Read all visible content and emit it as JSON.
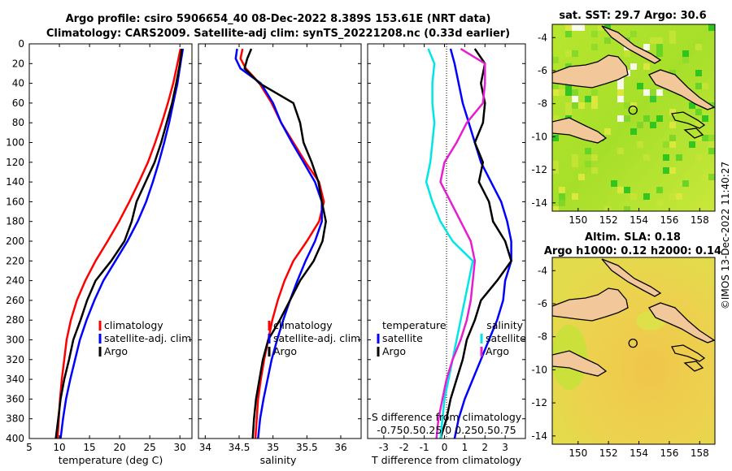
{
  "titles": {
    "line1": "Argo profile: csiro 5906654_40 08-Dec-2022 8.389S 153.61E (NRT data)",
    "line2": "Climatology: CARS2009. Satellite-adj clim: synTS_20221208.nc (0.33d earlier)",
    "map1": "sat. SST: 29.7 Argo: 30.6",
    "map2a": "Altim. SLA: 0.18",
    "map2b": "Argo h1000: 0.12 h2000: 0.14",
    "side": "©IMOS 13-Dec-2022 11:40:27"
  },
  "colors": {
    "climatology": "#ff0000",
    "satellite": "#0000ff",
    "argo": "#000000",
    "sat_salinity": "#00e6e6",
    "argo_salinity": "#e61ed2"
  },
  "chart_data": [
    {
      "type": "line",
      "name": "temperature",
      "xlabel": "temperature (deg C)",
      "ylabel": "",
      "xlim": [
        5,
        32
      ],
      "ylim": [
        400,
        0
      ],
      "xticks": [
        5,
        10,
        15,
        20,
        25,
        30
      ],
      "yticks": [
        0,
        20,
        40,
        60,
        80,
        100,
        120,
        140,
        160,
        180,
        200,
        220,
        240,
        260,
        280,
        300,
        320,
        340,
        360,
        380,
        400
      ],
      "legend": [
        "climatology",
        "satellite-adj. clim",
        "Argo"
      ],
      "series": [
        {
          "name": "climatology",
          "depth": [
            5,
            20,
            40,
            60,
            80,
            100,
            120,
            140,
            160,
            180,
            200,
            220,
            240,
            260,
            280,
            300,
            320,
            340,
            360,
            380,
            400
          ],
          "values": [
            30.1,
            29.6,
            28.9,
            28.0,
            27.0,
            25.9,
            24.7,
            23.2,
            21.6,
            19.9,
            18.0,
            16.0,
            14.3,
            12.9,
            11.9,
            11.2,
            10.8,
            10.4,
            10.1,
            9.9,
            9.7
          ]
        },
        {
          "name": "satellite-adj. clim",
          "depth": [
            5,
            20,
            40,
            60,
            80,
            100,
            120,
            140,
            160,
            180,
            200,
            220,
            240,
            260,
            280,
            300,
            320,
            340,
            360,
            380,
            400
          ],
          "values": [
            30.5,
            30.1,
            29.6,
            28.9,
            28.2,
            27.4,
            26.5,
            25.5,
            24.4,
            23.0,
            21.3,
            19.3,
            17.3,
            15.8,
            14.5,
            13.4,
            12.6,
            11.8,
            11.1,
            10.6,
            10.2
          ]
        },
        {
          "name": "Argo",
          "depth": [
            5,
            20,
            40,
            60,
            80,
            100,
            120,
            140,
            160,
            180,
            200,
            220,
            240,
            260,
            280,
            300,
            320,
            340,
            360,
            380,
            400
          ],
          "values": [
            30.3,
            30.0,
            29.4,
            28.7,
            27.8,
            26.9,
            25.8,
            24.3,
            22.8,
            22.0,
            20.8,
            18.6,
            16.0,
            14.6,
            13.5,
            12.3,
            11.6,
            10.8,
            10.2,
            9.8,
            9.4
          ]
        }
      ]
    },
    {
      "type": "line",
      "name": "salinity",
      "xlabel": "salinity",
      "ylabel": "",
      "xlim": [
        33.9,
        36.3
      ],
      "ylim": [
        400,
        0
      ],
      "xticks": [
        34,
        34.5,
        35,
        35.5,
        36
      ],
      "legend": [
        "climatology",
        "satellite-adj. clim",
        "Argo"
      ],
      "series": [
        {
          "name": "climatology",
          "depth": [
            5,
            15,
            25,
            40,
            60,
            80,
            100,
            120,
            140,
            160,
            180,
            200,
            220,
            240,
            260,
            280,
            300,
            320,
            340,
            360,
            380,
            400
          ],
          "values": [
            34.55,
            34.52,
            34.6,
            34.8,
            34.98,
            35.12,
            35.3,
            35.48,
            35.68,
            35.75,
            35.68,
            35.5,
            35.3,
            35.17,
            35.07,
            34.99,
            34.93,
            34.87,
            34.82,
            34.78,
            34.76,
            34.74
          ]
        },
        {
          "name": "satellite-adj. clim",
          "depth": [
            5,
            15,
            25,
            40,
            60,
            80,
            100,
            120,
            140,
            160,
            180,
            200,
            220,
            240,
            260,
            280,
            300,
            320,
            340,
            360,
            380,
            400
          ],
          "values": [
            34.47,
            34.45,
            34.52,
            34.82,
            35.0,
            35.12,
            35.28,
            35.45,
            35.62,
            35.72,
            35.72,
            35.62,
            35.48,
            35.36,
            35.25,
            35.15,
            35.06,
            34.98,
            34.92,
            34.86,
            34.81,
            34.78
          ]
        },
        {
          "name": "Argo",
          "depth": [
            5,
            15,
            25,
            40,
            60,
            80,
            100,
            120,
            140,
            160,
            180,
            200,
            220,
            240,
            260,
            280,
            300,
            320,
            340,
            360,
            380,
            400
          ],
          "values": [
            34.68,
            34.62,
            34.58,
            34.8,
            35.3,
            35.4,
            35.45,
            35.57,
            35.67,
            35.72,
            35.78,
            35.73,
            35.6,
            35.4,
            35.25,
            35.1,
            34.93,
            34.85,
            34.8,
            34.75,
            34.72,
            34.7
          ]
        }
      ]
    },
    {
      "type": "line",
      "name": "difference",
      "xlabel": "T difference from climatology",
      "xlabel_top": "S difference from climatology",
      "xlim": [
        -3.8,
        4.0
      ],
      "ylim": [
        400,
        0
      ],
      "xticks": [
        -3,
        -2,
        -1,
        0,
        1,
        2,
        3
      ],
      "xtick_labels_top": "-0.750.50.25  0  0.250.50.75",
      "legend_left_title": "temperature",
      "legend_right_title": "salinity",
      "legend_left": [
        "satellite",
        "Argo"
      ],
      "legend_right": [
        "satellite",
        "Argo"
      ],
      "series": [
        {
          "name": "T satellite",
          "depth": [
            5,
            20,
            40,
            60,
            80,
            100,
            120,
            140,
            160,
            180,
            200,
            220,
            240,
            260,
            280,
            300,
            320,
            340,
            360,
            380,
            400
          ],
          "values": [
            0.3,
            0.5,
            0.7,
            0.9,
            1.2,
            1.5,
            1.8,
            2.3,
            2.8,
            3.1,
            3.3,
            3.3,
            3.0,
            2.9,
            2.6,
            2.2,
            1.8,
            1.4,
            1.0,
            0.7,
            0.5
          ]
        },
        {
          "name": "T Argo",
          "depth": [
            5,
            20,
            40,
            60,
            80,
            100,
            120,
            140,
            160,
            180,
            200,
            220,
            240,
            260,
            280,
            300,
            320,
            340,
            360,
            380,
            400
          ],
          "values": [
            1.5,
            2.0,
            1.8,
            2.0,
            1.9,
            1.5,
            1.9,
            1.7,
            2.2,
            2.4,
            3.0,
            3.3,
            2.6,
            1.8,
            1.5,
            1.1,
            0.9,
            0.6,
            0.3,
            0.1,
            -0.2
          ]
        },
        {
          "name": "S satellite",
          "depth": [
            5,
            20,
            40,
            60,
            80,
            100,
            120,
            140,
            160,
            180,
            200,
            220,
            240,
            260,
            280,
            300,
            320,
            340,
            360,
            380,
            400
          ],
          "values": [
            -0.8,
            -0.5,
            -0.6,
            -0.6,
            -0.5,
            -0.6,
            -0.7,
            -0.9,
            -0.6,
            -0.2,
            0.4,
            1.4,
            1.2,
            1.0,
            0.8,
            0.6,
            0.4,
            0.2,
            0.0,
            -0.1,
            -0.2
          ]
        },
        {
          "name": "S Argo",
          "depth": [
            5,
            20,
            40,
            60,
            80,
            100,
            120,
            140,
            160,
            180,
            200,
            220,
            240,
            260,
            280,
            300,
            320,
            340,
            360,
            380,
            400
          ],
          "values": [
            0.8,
            2.0,
            2.0,
            1.9,
            1.1,
            0.6,
            0.0,
            -0.2,
            0.3,
            0.8,
            1.3,
            1.5,
            1.4,
            1.3,
            1.1,
            0.8,
            0.4,
            0.1,
            -0.1,
            -0.3,
            -0.4
          ]
        }
      ]
    },
    {
      "type": "heatmap",
      "name": "sst-map",
      "xlim": [
        148.3,
        159.0
      ],
      "ylim": [
        -14.5,
        -3.2
      ],
      "xticks": [
        150,
        152,
        154,
        156,
        158
      ],
      "yticks": [
        -4,
        -6,
        -8,
        -10,
        -12,
        -14
      ],
      "argo_position": {
        "lon": 153.61,
        "lat": -8.389
      }
    },
    {
      "type": "heatmap",
      "name": "sla-map",
      "xlim": [
        148.3,
        159.0
      ],
      "ylim": [
        -14.5,
        -3.2
      ],
      "xticks": [
        150,
        152,
        154,
        156,
        158
      ],
      "yticks": [
        -4,
        -6,
        -8,
        -10,
        -12,
        -14
      ],
      "argo_position": {
        "lon": 153.61,
        "lat": -8.389
      }
    }
  ]
}
